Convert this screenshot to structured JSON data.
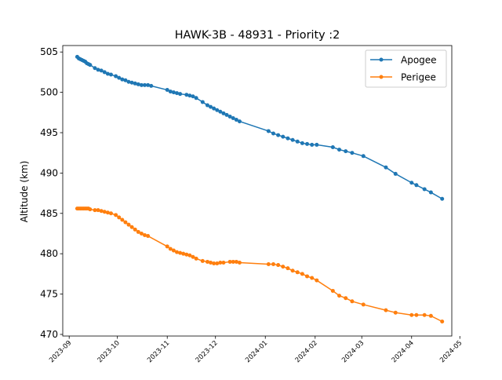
{
  "chart_data": {
    "type": "line",
    "title": "HAWK-3B - 48931 - Priority :2",
    "xlabel": "",
    "ylabel": "Altitude (km)",
    "xlim": [
      "2023-08-28",
      "2024-04-26"
    ],
    "ylim": [
      469.8,
      505.8
    ],
    "x_ticks": [
      "2023-09",
      "2023-10",
      "2023-11",
      "2023-12",
      "2024-01",
      "2024-02",
      "2024-03",
      "2024-04",
      "2024-05"
    ],
    "y_ticks": [
      470,
      475,
      480,
      485,
      490,
      495,
      500,
      505
    ],
    "grid": false,
    "legend_position": "top-right",
    "series": [
      {
        "name": "Apogee",
        "color": "#1f77b4",
        "points": [
          [
            "2023-09-06",
            504.4
          ],
          [
            "2023-09-07",
            504.2
          ],
          [
            "2023-09-08",
            504.1
          ],
          [
            "2023-09-09",
            504.0
          ],
          [
            "2023-09-10",
            503.9
          ],
          [
            "2023-09-11",
            503.8
          ],
          [
            "2023-09-12",
            503.6
          ],
          [
            "2023-09-13",
            503.5
          ],
          [
            "2023-09-14",
            503.4
          ],
          [
            "2023-09-17",
            503.0
          ],
          [
            "2023-09-19",
            502.8
          ],
          [
            "2023-09-21",
            502.7
          ],
          [
            "2023-09-23",
            502.5
          ],
          [
            "2023-09-25",
            502.3
          ],
          [
            "2023-09-27",
            502.2
          ],
          [
            "2023-09-30",
            502.0
          ],
          [
            "2023-10-02",
            501.8
          ],
          [
            "2023-10-04",
            501.6
          ],
          [
            "2023-10-06",
            501.5
          ],
          [
            "2023-10-08",
            501.3
          ],
          [
            "2023-10-10",
            501.2
          ],
          [
            "2023-10-12",
            501.1
          ],
          [
            "2023-10-14",
            501.0
          ],
          [
            "2023-10-16",
            500.9
          ],
          [
            "2023-10-18",
            500.9
          ],
          [
            "2023-10-20",
            500.9
          ],
          [
            "2023-10-22",
            500.8
          ],
          [
            "2023-11-01",
            500.3
          ],
          [
            "2023-11-03",
            500.1
          ],
          [
            "2023-11-05",
            500.0
          ],
          [
            "2023-11-07",
            499.9
          ],
          [
            "2023-11-09",
            499.8
          ],
          [
            "2023-11-13",
            499.7
          ],
          [
            "2023-11-15",
            499.6
          ],
          [
            "2023-11-17",
            499.5
          ],
          [
            "2023-11-19",
            499.3
          ],
          [
            "2023-11-23",
            498.8
          ],
          [
            "2023-11-26",
            498.4
          ],
          [
            "2023-11-28",
            498.2
          ],
          [
            "2023-11-30",
            498.0
          ],
          [
            "2023-12-02",
            497.8
          ],
          [
            "2023-12-04",
            497.6
          ],
          [
            "2023-12-06",
            497.4
          ],
          [
            "2023-12-08",
            497.2
          ],
          [
            "2023-12-10",
            497.0
          ],
          [
            "2023-12-12",
            496.8
          ],
          [
            "2023-12-14",
            496.6
          ],
          [
            "2023-12-16",
            496.4
          ],
          [
            "2024-01-03",
            495.2
          ],
          [
            "2024-01-06",
            494.9
          ],
          [
            "2024-01-09",
            494.7
          ],
          [
            "2024-01-12",
            494.5
          ],
          [
            "2024-01-15",
            494.3
          ],
          [
            "2024-01-18",
            494.1
          ],
          [
            "2024-01-21",
            493.9
          ],
          [
            "2024-01-24",
            493.7
          ],
          [
            "2024-01-27",
            493.6
          ],
          [
            "2024-01-30",
            493.5
          ],
          [
            "2024-02-02",
            493.5
          ],
          [
            "2024-02-12",
            493.2
          ],
          [
            "2024-02-16",
            492.9
          ],
          [
            "2024-02-20",
            492.7
          ],
          [
            "2024-02-24",
            492.5
          ],
          [
            "2024-03-02",
            492.1
          ],
          [
            "2024-03-16",
            490.7
          ],
          [
            "2024-03-22",
            489.9
          ],
          [
            "2024-04-01",
            488.8
          ],
          [
            "2024-04-04",
            488.5
          ],
          [
            "2024-04-09",
            488.0
          ],
          [
            "2024-04-13",
            487.6
          ],
          [
            "2024-04-20",
            486.8
          ]
        ]
      },
      {
        "name": "Perigee",
        "color": "#ff7f0e",
        "points": [
          [
            "2023-09-06",
            485.6
          ],
          [
            "2023-09-07",
            485.6
          ],
          [
            "2023-09-08",
            485.6
          ],
          [
            "2023-09-09",
            485.6
          ],
          [
            "2023-09-10",
            485.6
          ],
          [
            "2023-09-11",
            485.6
          ],
          [
            "2023-09-12",
            485.6
          ],
          [
            "2023-09-13",
            485.6
          ],
          [
            "2023-09-14",
            485.5
          ],
          [
            "2023-09-17",
            485.4
          ],
          [
            "2023-09-19",
            485.4
          ],
          [
            "2023-09-21",
            485.3
          ],
          [
            "2023-09-23",
            485.2
          ],
          [
            "2023-09-25",
            485.1
          ],
          [
            "2023-09-27",
            485.0
          ],
          [
            "2023-09-30",
            484.8
          ],
          [
            "2023-10-02",
            484.5
          ],
          [
            "2023-10-04",
            484.2
          ],
          [
            "2023-10-06",
            483.9
          ],
          [
            "2023-10-08",
            483.6
          ],
          [
            "2023-10-10",
            483.3
          ],
          [
            "2023-10-12",
            483.0
          ],
          [
            "2023-10-14",
            482.7
          ],
          [
            "2023-10-16",
            482.5
          ],
          [
            "2023-10-18",
            482.3
          ],
          [
            "2023-10-20",
            482.2
          ],
          [
            "2023-11-01",
            480.9
          ],
          [
            "2023-11-03",
            480.6
          ],
          [
            "2023-11-05",
            480.4
          ],
          [
            "2023-11-07",
            480.2
          ],
          [
            "2023-11-09",
            480.1
          ],
          [
            "2023-11-11",
            480.0
          ],
          [
            "2023-11-13",
            479.9
          ],
          [
            "2023-11-15",
            479.8
          ],
          [
            "2023-11-17",
            479.6
          ],
          [
            "2023-11-19",
            479.4
          ],
          [
            "2023-11-23",
            479.1
          ],
          [
            "2023-11-26",
            479.0
          ],
          [
            "2023-11-28",
            478.9
          ],
          [
            "2023-11-30",
            478.8
          ],
          [
            "2023-12-02",
            478.8
          ],
          [
            "2023-12-04",
            478.9
          ],
          [
            "2023-12-06",
            478.9
          ],
          [
            "2023-12-10",
            479.0
          ],
          [
            "2023-12-12",
            479.0
          ],
          [
            "2023-12-14",
            479.0
          ],
          [
            "2023-12-16",
            478.9
          ],
          [
            "2024-01-03",
            478.7
          ],
          [
            "2024-01-06",
            478.7
          ],
          [
            "2024-01-09",
            478.6
          ],
          [
            "2024-01-12",
            478.4
          ],
          [
            "2024-01-15",
            478.2
          ],
          [
            "2024-01-18",
            477.9
          ],
          [
            "2024-01-21",
            477.7
          ],
          [
            "2024-01-24",
            477.5
          ],
          [
            "2024-01-27",
            477.2
          ],
          [
            "2024-01-30",
            477.0
          ],
          [
            "2024-02-02",
            476.7
          ],
          [
            "2024-02-12",
            475.4
          ],
          [
            "2024-02-16",
            474.8
          ],
          [
            "2024-02-20",
            474.5
          ],
          [
            "2024-02-24",
            474.1
          ],
          [
            "2024-03-02",
            473.7
          ],
          [
            "2024-03-16",
            473.0
          ],
          [
            "2024-03-22",
            472.7
          ],
          [
            "2024-04-01",
            472.4
          ],
          [
            "2024-04-04",
            472.4
          ],
          [
            "2024-04-09",
            472.4
          ],
          [
            "2024-04-13",
            472.3
          ],
          [
            "2024-04-20",
            471.6
          ]
        ]
      }
    ]
  }
}
